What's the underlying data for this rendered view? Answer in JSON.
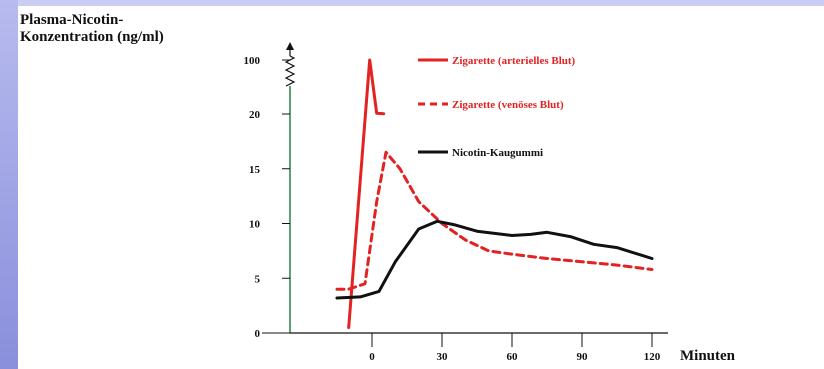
{
  "chart_data": {
    "type": "line",
    "ylabel_line1": "Plasma-Nicotin-",
    "ylabel_line2": "Konzentration (ng/ml)",
    "xlabel": "Minuten",
    "x_ticks": [
      "0",
      "30",
      "60",
      "90",
      "120"
    ],
    "y_ticks": [
      "0",
      "5",
      "10",
      "15",
      "20",
      "100"
    ],
    "y_axis_break": true,
    "legend_placement": "top-right",
    "series": [
      {
        "name": "Zigarette (arterielles Blut)",
        "style": "solid",
        "color": "#e32222",
        "points": [
          [
            -10,
            0.5
          ],
          [
            -1,
            100
          ],
          [
            2,
            21
          ],
          [
            5,
            20.5
          ]
        ]
      },
      {
        "name": "Zigarette (venöses Blut)",
        "style": "dashed",
        "color": "#e32222",
        "points": [
          [
            -15,
            4.0
          ],
          [
            -10,
            4.0
          ],
          [
            -3,
            4.5
          ],
          [
            2,
            12
          ],
          [
            6,
            16.5
          ],
          [
            12,
            15
          ],
          [
            20,
            12
          ],
          [
            30,
            10
          ],
          [
            40,
            8.5
          ],
          [
            50,
            7.5
          ],
          [
            60,
            7.2
          ],
          [
            75,
            6.8
          ],
          [
            90,
            6.5
          ],
          [
            105,
            6.2
          ],
          [
            120,
            5.8
          ]
        ]
      },
      {
        "name": "Nicotin-Kaugummi",
        "style": "solid",
        "color": "#111111",
        "points": [
          [
            -15,
            3.2
          ],
          [
            -5,
            3.3
          ],
          [
            3,
            3.8
          ],
          [
            10,
            6.5
          ],
          [
            20,
            9.5
          ],
          [
            28,
            10.2
          ],
          [
            35,
            9.9
          ],
          [
            45,
            9.3
          ],
          [
            60,
            8.9
          ],
          [
            68,
            9.0
          ],
          [
            75,
            9.2
          ],
          [
            85,
            8.8
          ],
          [
            95,
            8.1
          ],
          [
            105,
            7.8
          ],
          [
            120,
            6.8
          ]
        ]
      }
    ]
  }
}
